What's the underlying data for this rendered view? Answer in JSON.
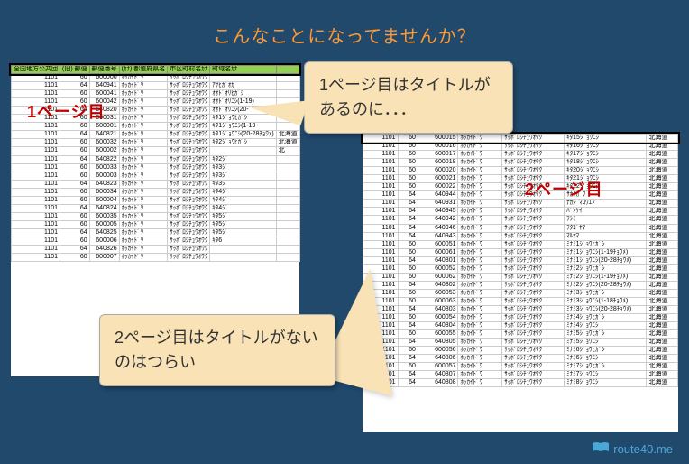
{
  "title": "こんなことになってませんか？",
  "callout1": "1ページ目はタイトルがあるのに．．．",
  "callout2": "2ページ目はタイトルがないのはつらい",
  "page1_label": "1ページ目",
  "page2_label": "2ページ目",
  "footer": "route40.me",
  "headers": [
    "全国地方公共団",
    "(旧) 郵便",
    "郵便番号",
    "(ｶﾅ) 都道府県名",
    "市区町村名ｶﾅ",
    "町域名ｶﾅ",
    ""
  ],
  "page1_rows": [
    [
      "1101",
      "60",
      "600000",
      "ﾎｯｶｲﾄﾞｳ",
      "ｻｯﾎﾟﾛｼﾁｭｳｵｳｸ",
      "",
      ""
    ],
    [
      "1101",
      "64",
      "640941",
      "ﾎｯｶｲﾄﾞｳ",
      "ｻｯﾎﾟﾛｼﾁｭｳｵｳｸ",
      "ｱｻﾋｶﾞｵｶ",
      ""
    ],
    [
      "1101",
      "60",
      "600041",
      "ﾎｯｶｲﾄﾞｳ",
      "ｻｯﾎﾟﾛｼﾁｭｳｵｳｸ",
      "ｵｵﾄﾞｵﾘﾋｶﾞｼ",
      ""
    ],
    [
      "1101",
      "60",
      "600042",
      "ﾎｯｶｲﾄﾞｳ",
      "ｻｯﾎﾟﾛｼﾁｭｳｵｳｸ",
      "ｵｵﾄﾞｵﾘﾆｼ(1-19)",
      ""
    ],
    [
      "1101",
      "64",
      "640820",
      "ﾎｯｶｲﾄﾞｳ",
      "ｻｯﾎﾟﾛｼﾁｭｳｵｳｸ",
      "ｵｵﾄﾞｵﾘﾆｼ(20-",
      ""
    ],
    [
      "1101",
      "60",
      "600031",
      "ﾎｯｶｲﾄﾞｳ",
      "ｻｯﾎﾟﾛｼﾁｭｳｵｳｸ",
      "ｷﾀ1ｼﾞｮｳﾋｶﾞｼ",
      ""
    ],
    [
      "1101",
      "60",
      "600001",
      "ﾎｯｶｲﾄﾞｳ",
      "ｻｯﾎﾟﾛｼﾁｭｳｵｳｸ",
      "ｷﾀ1ｼﾞｮｳﾆｼ(1-19",
      ""
    ],
    [
      "1101",
      "64",
      "640821",
      "ﾎｯｶｲﾄﾞｳ",
      "ｻｯﾎﾟﾛｼﾁｭｳｵｳｸ",
      "ｷﾀ1ｼﾞｮｳﾆｼ(20-28ﾁｮｳﾒ)",
      "北海道"
    ],
    [
      "1101",
      "60",
      "600032",
      "ﾎｯｶｲﾄﾞｳ",
      "ｻｯﾎﾟﾛｼﾁｭｳｵｳｸ",
      "ｷﾀ2ｼﾞｮｳﾋｶﾞｼ",
      "北海道"
    ],
    [
      "1101",
      "60",
      "600002",
      "ﾎｯｶｲﾄﾞｳ",
      "ｻｯﾎﾟﾛｼﾁｭｳｵｳｸ",
      "",
      "北"
    ],
    [
      "1101",
      "64",
      "640822",
      "ﾎｯｶｲﾄﾞｳ",
      "ｻｯﾎﾟﾛｼﾁｭｳｵｳｸ",
      "ｷﾀ2ｼﾞ",
      ""
    ],
    [
      "1101",
      "60",
      "600033",
      "ﾎｯｶｲﾄﾞｳ",
      "ｻｯﾎﾟﾛｼﾁｭｳｵｳｸ",
      "ｷﾀ3ｼﾞ",
      ""
    ],
    [
      "1101",
      "60",
      "600003",
      "ﾎｯｶｲﾄﾞｳ",
      "ｻｯﾎﾟﾛｼﾁｭｳｵｳｸ",
      "ｷﾀ3ｼﾞ",
      ""
    ],
    [
      "1101",
      "64",
      "640823",
      "ﾎｯｶｲﾄﾞｳ",
      "ｻｯﾎﾟﾛｼﾁｭｳｵｳｸ",
      "ｷﾀ3ｼﾞ",
      ""
    ],
    [
      "1101",
      "60",
      "600034",
      "ﾎｯｶｲﾄﾞｳ",
      "ｻｯﾎﾟﾛｼﾁｭｳｵｳｸ",
      "ｷﾀ4ｼﾞ",
      ""
    ],
    [
      "1101",
      "60",
      "600004",
      "ﾎｯｶｲﾄﾞｳ",
      "ｻｯﾎﾟﾛｼﾁｭｳｵｳｸ",
      "ｷﾀ4ｼﾞ",
      ""
    ],
    [
      "1101",
      "64",
      "640824",
      "ﾎｯｶｲﾄﾞｳ",
      "ｻｯﾎﾟﾛｼﾁｭｳｵｳｸ",
      "ｷﾀ4ｼﾞ",
      ""
    ],
    [
      "1101",
      "60",
      "600035",
      "ﾎｯｶｲﾄﾞｳ",
      "ｻｯﾎﾟﾛｼﾁｭｳｵｳｸ",
      "ｷﾀ5ｼﾞ",
      ""
    ],
    [
      "1101",
      "60",
      "600005",
      "ﾎｯｶｲﾄﾞｳ",
      "ｻｯﾎﾟﾛｼﾁｭｳｵｳｸ",
      "ｷﾀ5ｼﾞ",
      ""
    ],
    [
      "1101",
      "64",
      "640825",
      "ﾎｯｶｲﾄﾞｳ",
      "ｻｯﾎﾟﾛｼﾁｭｳｵｳｸ",
      "ｷﾀ5ｼﾞ",
      ""
    ],
    [
      "1101",
      "60",
      "600006",
      "ﾎｯｶｲﾄﾞｳ",
      "ｻｯﾎﾟﾛｼﾁｭｳｵｳｸ",
      "ｷﾀ6",
      ""
    ],
    [
      "1101",
      "64",
      "640826",
      "ﾎｯｶｲﾄﾞｳ",
      "ｻｯﾎﾟﾛｼﾁｭｳｵｳｸ",
      "",
      ""
    ],
    [
      "1101",
      "60",
      "600007",
      "ﾎｯｶｲﾄﾞｳ",
      "ｻｯﾎﾟﾛｼﾁｭｳｵｳｸ",
      "",
      ""
    ]
  ],
  "page2_rows": [
    [
      "1101",
      "60",
      "600015",
      "ﾎｯｶｲﾄﾞｳ",
      "ｻｯﾎﾟﾛｼﾁｭｳｵｳｸ",
      "ｷﾀ15ｼﾞｮｳﾆｼ",
      "北海道"
    ],
    [
      "1101",
      "60",
      "600016",
      "ﾎｯｶｲﾄﾞｳ",
      "ｻｯﾎﾟﾛｼﾁｭｳｵｳｸ",
      "ｷﾀ16ｼﾞｮｳﾆｼ",
      "北海道"
    ],
    [
      "1101",
      "60",
      "600017",
      "ﾎｯｶｲﾄﾞｳ",
      "ｻｯﾎﾟﾛｼﾁｭｳｵｳｸ",
      "ｷﾀ17ｼﾞｮｳﾆｼ",
      "北海道"
    ],
    [
      "1101",
      "60",
      "600018",
      "ﾎｯｶｲﾄﾞｳ",
      "ｻｯﾎﾟﾛｼﾁｭｳｵｳｸ",
      "ｷﾀ18ｼﾞｮｳﾆｼ",
      "北海道"
    ],
    [
      "1101",
      "60",
      "600020",
      "ﾎｯｶｲﾄﾞｳ",
      "ｻｯﾎﾟﾛｼﾁｭｳｵｳｸ",
      "ｷﾀ20ｼﾞｮｳﾆｼ",
      "北海道"
    ],
    [
      "1101",
      "60",
      "600021",
      "ﾎｯｶｲﾄﾞｳ",
      "ｻｯﾎﾟﾛｼﾁｭｳｵｳｸ",
      "ｷﾀ21ｼﾞｮｳﾆｼ",
      "北海道"
    ],
    [
      "1101",
      "60",
      "600022",
      "ﾎｯｶｲﾄﾞｳ",
      "ｻｯﾎﾟﾛｼﾁｭｳｵｳｸ",
      "ｷﾀ22ｼﾞｮｳﾆｼ",
      "北海道"
    ],
    [
      "1101",
      "64",
      "640944",
      "ﾎｯｶｲﾄﾞｳ",
      "ｻｯﾎﾟﾛｼﾁｭｳｵｳｸ",
      "ｻｶｲｶﾞﾜ",
      "北海道"
    ],
    [
      "1101",
      "64",
      "640931",
      "ﾎｯｶｲﾄﾞｳ",
      "ｻｯﾎﾟﾛｼﾁｭｳｵｳｸ",
      "ﾅｶｼﾞﾏｺｳｴﾝ",
      "北海道"
    ],
    [
      "1101",
      "64",
      "640945",
      "ﾎｯｶｲﾄﾞｳ",
      "ｻｯﾎﾟﾛｼﾁｭｳｵｳｸ",
      "ﾊﾞﾝｹｲ",
      "北海道"
    ],
    [
      "1101",
      "64",
      "640942",
      "ﾎｯｶｲﾄﾞｳ",
      "ｻｯﾎﾟﾛｼﾁｭｳｵｳｸ",
      "ﾌｼﾐ",
      "北海道"
    ],
    [
      "1101",
      "64",
      "640946",
      "ﾎｯｶｲﾄﾞｳ",
      "ｻｯﾎﾟﾛｼﾁｭｳｵｳｸ",
      "ﾌﾀｺﾞﾔﾏ",
      "北海道"
    ],
    [
      "1101",
      "64",
      "640943",
      "ﾎｯｶｲﾄﾞｳ",
      "ｻｯﾎﾟﾛｼﾁｭｳｵｳｸ",
      "ﾏﾙﾔﾏ",
      "北海道"
    ],
    [
      "1101",
      "60",
      "600051",
      "ﾎｯｶｲﾄﾞｳ",
      "ｻｯﾎﾟﾛｼﾁｭｳｵｳｸ",
      "ﾐﾅﾐ1ｼﾞｮｳﾋｶﾞｼ",
      "北海道"
    ],
    [
      "1101",
      "60",
      "600061",
      "ﾎｯｶｲﾄﾞｳ",
      "ｻｯﾎﾟﾛｼﾁｭｳｵｳｸ",
      "ﾐﾅﾐ1ｼﾞｮｳﾆｼ(1-19ﾁｮｳﾒ)",
      "北海道"
    ],
    [
      "1101",
      "64",
      "640801",
      "ﾎｯｶｲﾄﾞｳ",
      "ｻｯﾎﾟﾛｼﾁｭｳｵｳｸ",
      "ﾐﾅﾐ1ｼﾞｮｳﾆｼ(20-28ﾁｮｳﾒ)",
      "北海道"
    ],
    [
      "1101",
      "60",
      "600052",
      "ﾎｯｶｲﾄﾞｳ",
      "ｻｯﾎﾟﾛｼﾁｭｳｵｳｸ",
      "ﾐﾅﾐ2ｼﾞｮｳﾋｶﾞｼ",
      "北海道"
    ],
    [
      "1101",
      "60",
      "600062",
      "ﾎｯｶｲﾄﾞｳ",
      "ｻｯﾎﾟﾛｼﾁｭｳｵｳｸ",
      "ﾐﾅﾐ2ｼﾞｮｳﾆｼ(1-19ﾁｮｳﾒ)",
      "北海道"
    ],
    [
      "1101",
      "64",
      "640802",
      "ﾎｯｶｲﾄﾞｳ",
      "ｻｯﾎﾟﾛｼﾁｭｳｵｳｸ",
      "ﾐﾅﾐ2ｼﾞｮｳﾆｼ(20-28ﾁｮｳﾒ)",
      "北海道"
    ],
    [
      "1101",
      "60",
      "600053",
      "ﾎｯｶｲﾄﾞｳ",
      "ｻｯﾎﾟﾛｼﾁｭｳｵｳｸ",
      "ﾐﾅﾐ3ｼﾞｮｳﾋｶﾞｼ",
      "北海道"
    ],
    [
      "1101",
      "60",
      "600063",
      "ﾎｯｶｲﾄﾞｳ",
      "ｻｯﾎﾟﾛｼﾁｭｳｵｳｸ",
      "ﾐﾅﾐ3ｼﾞｮｳﾆｼ(1-18ﾁｮｳﾒ)",
      "北海道"
    ],
    [
      "1101",
      "64",
      "640803",
      "ﾎｯｶｲﾄﾞｳ",
      "ｻｯﾎﾟﾛｼﾁｭｳｵｳｸ",
      "ﾐﾅﾐ3ｼﾞｮｳﾆｼ(20-28ﾁｮｳﾒ)",
      "北海道"
    ],
    [
      "1101",
      "60",
      "600054",
      "ﾎｯｶｲﾄﾞｳ",
      "ｻｯﾎﾟﾛｼﾁｭｳｵｳｸ",
      "ﾐﾅﾐ4ｼﾞｮｳﾋｶﾞｼ",
      "北海道"
    ],
    [
      "1101",
      "64",
      "640804",
      "ﾎｯｶｲﾄﾞｳ",
      "ｻｯﾎﾟﾛｼﾁｭｳｵｳｸ",
      "ﾐﾅﾐ4ｼﾞｮｳﾆｼ",
      "北海道"
    ],
    [
      "1101",
      "60",
      "600055",
      "ﾎｯｶｲﾄﾞｳ",
      "ｻｯﾎﾟﾛｼﾁｭｳｵｳｸ",
      "ﾐﾅﾐ5ｼﾞｮｳﾋｶﾞｼ",
      "北海道"
    ],
    [
      "1101",
      "64",
      "640805",
      "ﾎｯｶｲﾄﾞｳ",
      "ｻｯﾎﾟﾛｼﾁｭｳｵｳｸ",
      "ﾐﾅﾐ5ｼﾞｮｳﾆｼ",
      "北海道"
    ],
    [
      "1101",
      "60",
      "600056",
      "ﾎｯｶｲﾄﾞｳ",
      "ｻｯﾎﾟﾛｼﾁｭｳｵｳｸ",
      "ﾐﾅﾐ6ｼﾞｮｳﾋｶﾞｼ",
      "北海道"
    ],
    [
      "1101",
      "64",
      "640806",
      "ﾎｯｶｲﾄﾞｳ",
      "ｻｯﾎﾟﾛｼﾁｭｳｵｳｸ",
      "ﾐﾅﾐ6ｼﾞｮｳﾆｼ",
      "北海道"
    ],
    [
      "1101",
      "60",
      "600057",
      "ﾎｯｶｲﾄﾞｳ",
      "ｻｯﾎﾟﾛｼﾁｭｳｵｳｸ",
      "ﾐﾅﾐ7ｼﾞｮｳﾋｶﾞｼ",
      "北海道"
    ],
    [
      "1101",
      "64",
      "640807",
      "ﾎｯｶｲﾄﾞｳ",
      "ｻｯﾎﾟﾛｼﾁｭｳｵｳｸ",
      "ﾐﾅﾐ7ｼﾞｮｳﾆｼ",
      "北海道"
    ],
    [
      "1101",
      "64",
      "640808",
      "ﾎｯｶｲﾄﾞｳ",
      "ｻｯﾎﾟﾛｼﾁｭｳｵｳｸ",
      "ﾐﾅﾐ8ｼﾞｮｳﾆｼ",
      "北海道"
    ]
  ]
}
